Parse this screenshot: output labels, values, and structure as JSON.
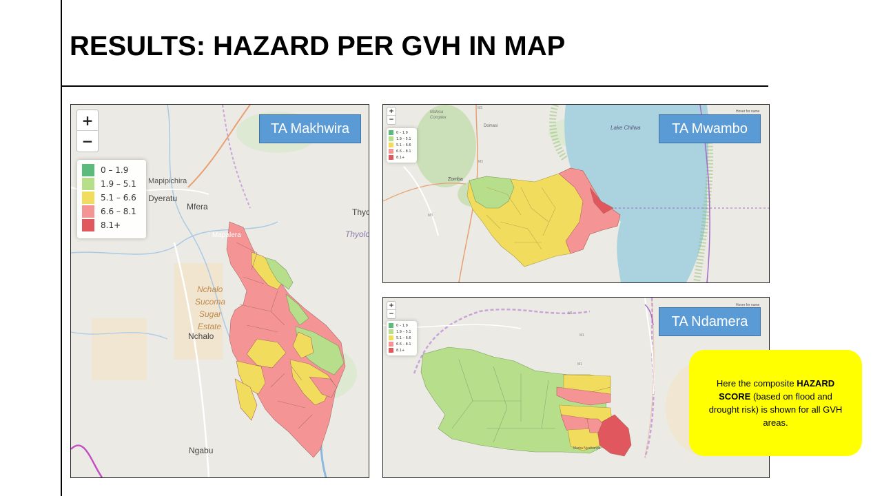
{
  "slide": {
    "title": "RESULTS: HAZARD PER GVH IN MAP"
  },
  "legend": {
    "ranges": [
      "0 – 1.9",
      "1.9 – 5.1",
      "5.1 – 6.6",
      "6.6 – 8.1",
      "8.1+"
    ],
    "colors": [
      "#5dba7d",
      "#b7de8a",
      "#f2dc5d",
      "#f59494",
      "#e0575e"
    ]
  },
  "zoom": {
    "in": "+",
    "out": "−"
  },
  "maps": {
    "makhwira": {
      "label": "TA Makhwira",
      "places": [
        "Mapipichira",
        "Dyeratu",
        "Mfera",
        "Thyo",
        "Thyolo",
        "Mapalera",
        "Nchalo",
        "Sucoma",
        "Sugar",
        "Estate",
        "Nchalo",
        "Ngabu"
      ]
    },
    "mwambo": {
      "label": "TA Mwambo",
      "hover": "Hover for name",
      "places": [
        "Malosa",
        "Complex",
        "Domasi",
        "Lake Chilwa",
        "Zomba",
        "M3",
        "M3",
        "M3"
      ]
    },
    "ndamera": {
      "label": "TA Ndamera",
      "hover": "Hover for name",
      "places": [
        "M1",
        "M1",
        "M1",
        "Marka Nyathando"
      ]
    }
  },
  "callout": {
    "pre": "Here the composite ",
    "bold": "HAZARD SCORE",
    "post": " (based on flood and drought risk) is shown for all GVH areas."
  }
}
